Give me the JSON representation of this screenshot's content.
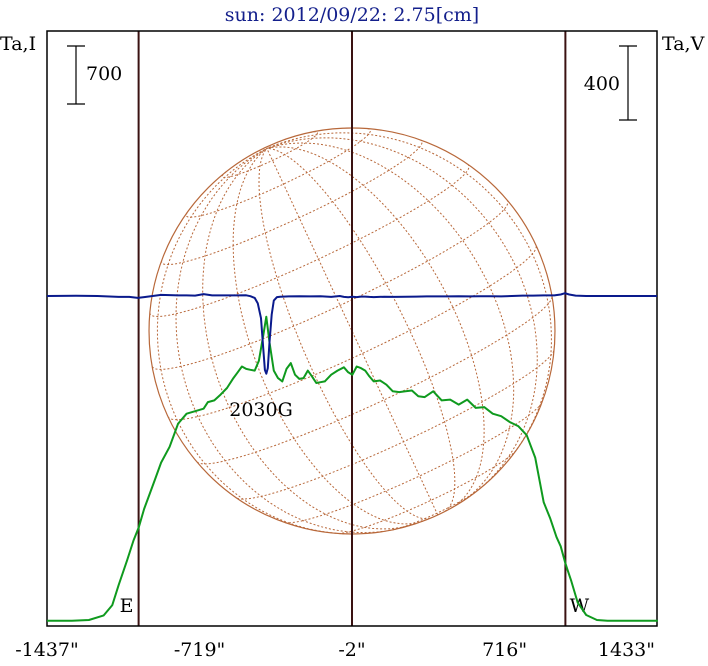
{
  "chart_data": {
    "type": "line",
    "title": "sun: 2012/09/22: 2.75[cm]",
    "left_axis_label": "Ta,I",
    "right_axis_label": "Ta,V",
    "left_scale_bar": {
      "label": "700",
      "value": 700
    },
    "right_scale_bar": {
      "label": "400",
      "value": 400
    },
    "x_ticks": [
      {
        "value": -1437,
        "label": "-1437\""
      },
      {
        "value": -719,
        "label": "-719\""
      },
      {
        "value": -2,
        "label": "-2\""
      },
      {
        "value": 716,
        "label": "716\""
      },
      {
        "value": 1433,
        "label": "1433\""
      }
    ],
    "xlim": [
      -1437,
      1433
    ],
    "vertical_markers": [
      {
        "x": -1006,
        "label": "E"
      },
      {
        "x": -2,
        "label": ""
      },
      {
        "x": 1002,
        "label": "W"
      }
    ],
    "annotations": [
      {
        "x": -405,
        "text": "2030G"
      }
    ],
    "solar_disk": {
      "radius_arcsec": 955,
      "center_x": -2,
      "grid": true
    },
    "colors": {
      "intensity": "#0f9a1e",
      "polarization": "#0a1a8c",
      "disk": "#b8683a",
      "markers": "#3a1212",
      "title": "#14208c",
      "axes": "#000000"
    },
    "series": [
      {
        "name": "Ta,I",
        "axis": "left",
        "x": [
          -1437,
          -1320,
          -1240,
          -1170,
          -1130,
          -1100,
          -1060,
          -1030,
          -1005,
          -980,
          -960,
          -930,
          -900,
          -860,
          -820,
          -780,
          -740,
          -700,
          -680,
          -650,
          -620,
          -590,
          -560,
          -540,
          -520,
          -500,
          -480,
          -460,
          -440,
          -420,
          -405,
          -390,
          -370,
          -350,
          -330,
          -310,
          -290,
          -270,
          -250,
          -230,
          -210,
          -190,
          -170,
          -150,
          -130,
          -100,
          -70,
          -40,
          -20,
          0,
          20,
          40,
          60,
          80,
          100,
          130,
          160,
          190,
          220,
          250,
          280,
          310,
          340,
          380,
          420,
          460,
          500,
          540,
          580,
          620,
          660,
          700,
          740,
          780,
          820,
          860,
          900,
          930,
          960,
          980,
          1000,
          1010,
          1030,
          1060,
          1100,
          1150,
          1200,
          1260,
          1320,
          1380,
          1437
        ],
        "y": [
          -9,
          -9,
          0,
          55,
          180,
          420,
          720,
          960,
          1120,
          1340,
          1480,
          1690,
          1900,
          2090,
          2370,
          2490,
          2520,
          2550,
          2630,
          2650,
          2720,
          2800,
          2920,
          2990,
          3060,
          3030,
          3020,
          3010,
          3130,
          3430,
          3660,
          3350,
          3010,
          2920,
          2880,
          3030,
          3100,
          2960,
          2910,
          2920,
          3010,
          2940,
          2860,
          2870,
          2880,
          2960,
          3010,
          3050,
          2990,
          2960,
          3060,
          3040,
          3010,
          2940,
          2880,
          2890,
          2840,
          2760,
          2750,
          2760,
          2770,
          2700,
          2690,
          2760,
          2650,
          2660,
          2600,
          2660,
          2560,
          2570,
          2490,
          2460,
          2390,
          2340,
          2230,
          1960,
          1420,
          1230,
          1000,
          890,
          700,
          620,
          470,
          210,
          60,
          0,
          -9,
          -9,
          -9,
          -9,
          -9
        ]
      },
      {
        "name": "Ta,V",
        "axis": "right",
        "x": [
          -1437,
          -1300,
          -1200,
          -1100,
          -1050,
          -1010,
          -980,
          -940,
          -900,
          -860,
          -820,
          -780,
          -740,
          -700,
          -660,
          -620,
          -580,
          -540,
          -500,
          -480,
          -460,
          -445,
          -430,
          -420,
          -412,
          -405,
          -398,
          -390,
          -380,
          -370,
          -355,
          -340,
          -300,
          -250,
          -200,
          -150,
          -100,
          -60,
          -40,
          -20,
          0,
          20,
          40,
          60,
          80,
          100,
          150,
          200,
          250,
          300,
          350,
          400,
          450,
          500,
          550,
          600,
          650,
          700,
          750,
          800,
          850,
          900,
          950,
          980,
          1000,
          1020,
          1050,
          1100,
          1200,
          1300,
          1433
        ],
        "y": [
          0,
          1,
          0,
          -5,
          -5,
          -10,
          -6,
          0,
          6,
          5,
          3,
          3,
          2,
          10,
          3,
          3,
          3,
          3,
          4,
          -1,
          -10,
          -40,
          -120,
          -280,
          -400,
          -420,
          -390,
          -250,
          -100,
          -25,
          -6,
          -4,
          -2,
          -1,
          -2,
          -1,
          -5,
          0,
          -5,
          -7,
          -4,
          -6,
          -3,
          -3,
          -5,
          -6,
          -4,
          -5,
          -4,
          -3,
          -2,
          -2,
          -2,
          -1,
          -2,
          -1,
          -1,
          -2,
          0,
          2,
          2,
          3,
          3,
          8,
          15,
          8,
          2,
          0,
          0,
          0,
          0
        ]
      }
    ]
  }
}
